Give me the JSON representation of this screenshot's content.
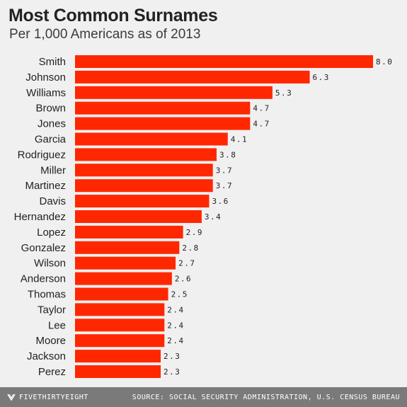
{
  "header": {
    "title": "Most Common Surnames",
    "subtitle": "Per 1,000 Americans as of 2013"
  },
  "footer": {
    "brand": "FIVETHIRTYEIGHT",
    "brand_icon": "fivethirtyeight-logo-icon",
    "source": "SOURCE: SOCIAL SECURITY ADMINISTRATION, U.S. CENSUS BUREAU"
  },
  "colors": {
    "bar": "#ff2700",
    "background": "#f0f0f0",
    "footer": "#7a7a7a"
  },
  "chart_data": {
    "type": "bar",
    "orientation": "horizontal",
    "title": "Most Common Surnames",
    "subtitle": "Per 1,000 Americans as of 2013",
    "xlabel": "",
    "ylabel": "",
    "xlim": [
      0,
      8
    ],
    "grid": false,
    "legend": "none",
    "categories": [
      "Smith",
      "Johnson",
      "Williams",
      "Brown",
      "Jones",
      "Garcia",
      "Rodriguez",
      "Miller",
      "Martinez",
      "Davis",
      "Hernandez",
      "Lopez",
      "Gonzalez",
      "Wilson",
      "Anderson",
      "Thomas",
      "Taylor",
      "Lee",
      "Moore",
      "Jackson",
      "Perez"
    ],
    "values": [
      8.0,
      6.3,
      5.3,
      4.7,
      4.7,
      4.1,
      3.8,
      3.7,
      3.7,
      3.6,
      3.4,
      2.9,
      2.8,
      2.7,
      2.6,
      2.5,
      2.4,
      2.4,
      2.4,
      2.3,
      2.3
    ],
    "value_labels": [
      "8.0",
      "6.3",
      "5.3",
      "4.7",
      "4.7",
      "4.1",
      "3.8",
      "3.7",
      "3.7",
      "3.6",
      "3.4",
      "2.9",
      "2.8",
      "2.7",
      "2.6",
      "2.5",
      "2.4",
      "2.4",
      "2.4",
      "2.3",
      "2.3"
    ]
  }
}
